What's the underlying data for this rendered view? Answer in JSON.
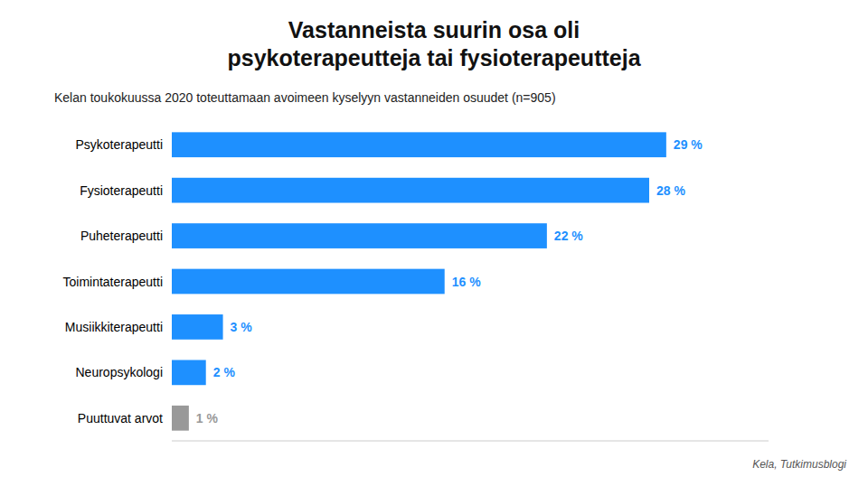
{
  "chart_data": {
    "type": "bar",
    "orientation": "horizontal",
    "title": "Vastanneista suurin osa oli\npsykoterapeutteja tai fysioterapeutteja",
    "subtitle": "Kelan toukokuussa 2020 toteuttamaan avoimeen kyselyyn vastanneiden osuudet (n=905)",
    "annotations": [
      "Kela, Tutkimusblogi"
    ],
    "categories": [
      "Puuttuvat arvot",
      "Neuropsykologi",
      "Musiikkiterapeutti",
      "Toimintaterapeutti",
      "Puheterapeutti",
      "Fysioterapeutti",
      "Psykoterapeutti"
    ],
    "values": [
      1,
      2,
      3,
      16,
      22,
      28,
      29
    ],
    "value_labels": [
      "1 %",
      "2 %",
      "3 %",
      "16 %",
      "22 %",
      "28 %",
      "29 %"
    ],
    "colors": [
      "#999999",
      "#1e90ff",
      "#1e90ff",
      "#1e90ff",
      "#1e90ff",
      "#1e90ff",
      "#1e90ff"
    ],
    "data_labels": true,
    "xlim": [
      0,
      35
    ],
    "xticks": [],
    "tick_labels": "y",
    "grid": false
  }
}
